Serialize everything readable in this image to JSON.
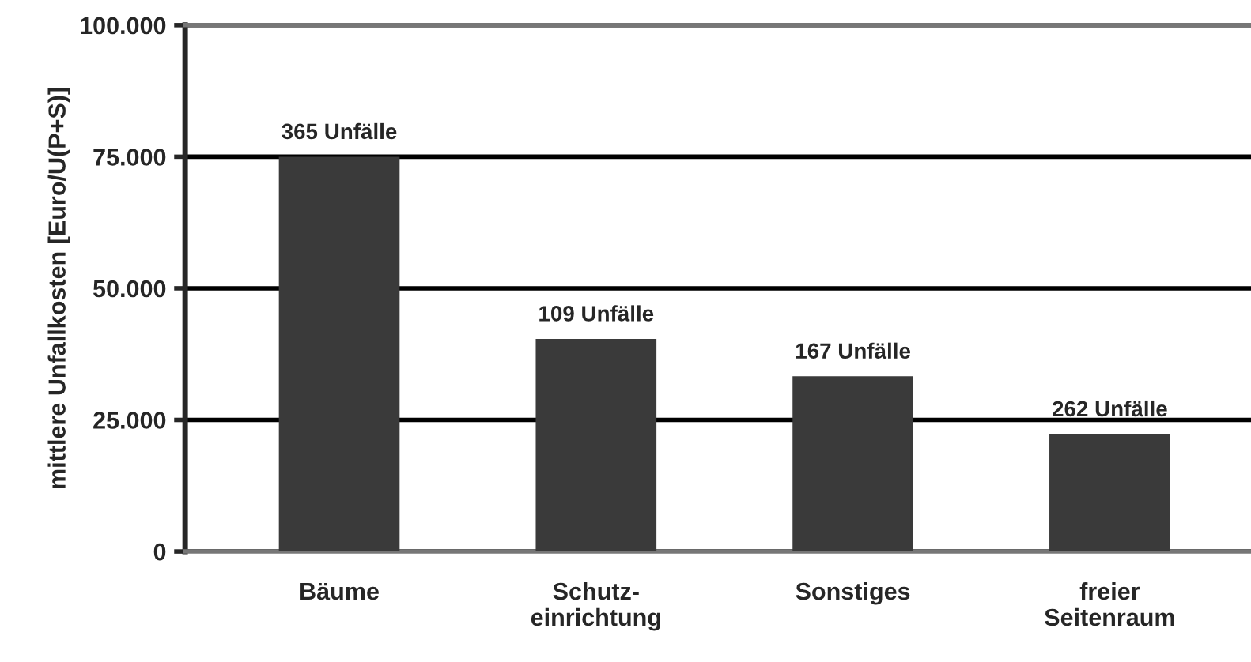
{
  "chart_data": {
    "type": "bar",
    "ylabel": "mittlere Unfallkosten [Euro/U(P+S)]",
    "categories": [
      "Bäume",
      "Schutz-\neinrichtung",
      "Sonstiges",
      "freier\nSeitenraum"
    ],
    "values": [
      75000,
      40400,
      33300,
      22300
    ],
    "annotations": [
      {
        "text": "365 Unfälle",
        "x": "Bäume",
        "y": 75000
      },
      {
        "text": "109 Unfälle",
        "x": "Schutz-\neinrichtung",
        "y": 40400
      },
      {
        "text": "167 Unfälle",
        "x": "Sonstiges",
        "y": 33300
      },
      {
        "text": "262 Unfälle",
        "x": "freier\nSeitenraum",
        "y": 22300
      }
    ],
    "color": "#3a3a3a",
    "ylim": [
      0,
      100000
    ],
    "yticks": [
      {
        "value": 0,
        "label": "0"
      },
      {
        "value": 25000,
        "label": "25.000"
      },
      {
        "value": 50000,
        "label": "50.000"
      },
      {
        "value": 75000,
        "label": "75.000"
      },
      {
        "value": 100000,
        "label": "100.000"
      }
    ],
    "grid": "y"
  }
}
